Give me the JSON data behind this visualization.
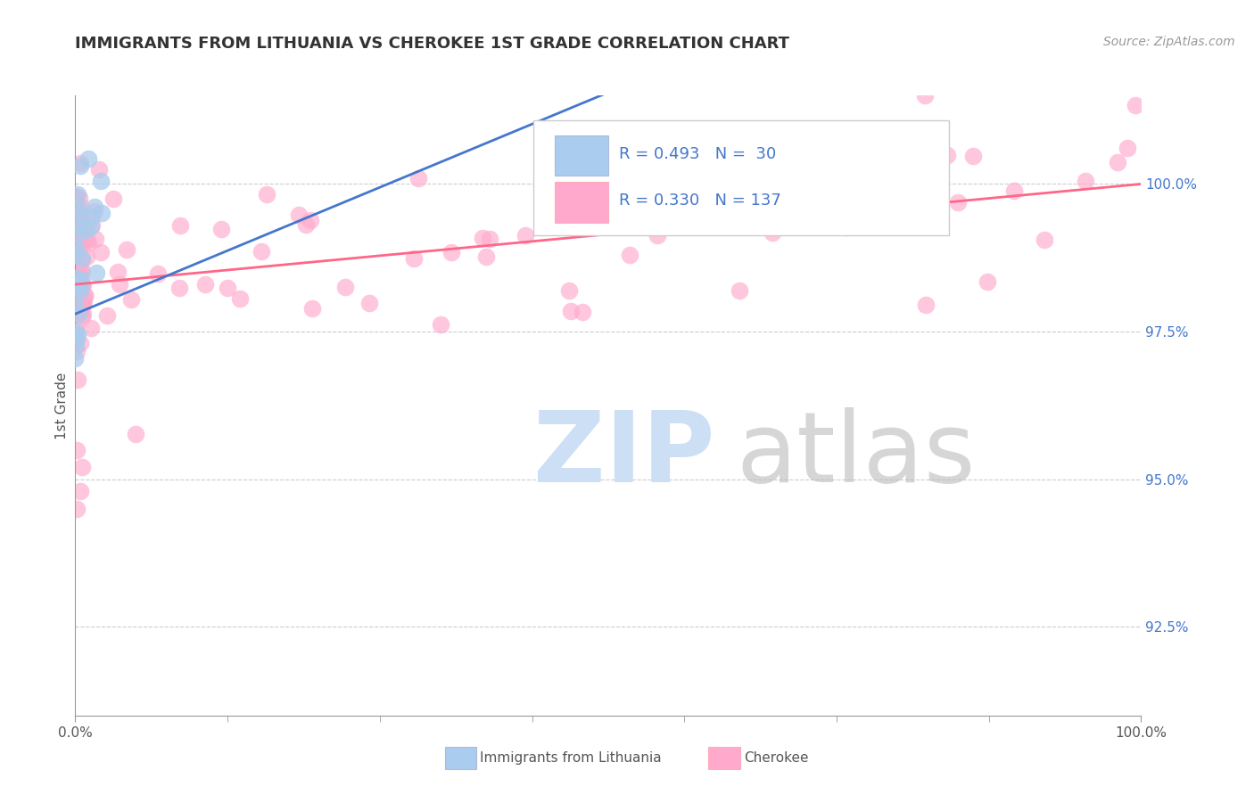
{
  "title": "IMMIGRANTS FROM LITHUANIA VS CHEROKEE 1ST GRADE CORRELATION CHART",
  "source_text": "Source: ZipAtlas.com",
  "ylabel": "1st Grade",
  "xmin": 0.0,
  "xmax": 100.0,
  "ymin": 91.0,
  "ymax": 101.5,
  "yticks": [
    92.5,
    95.0,
    97.5,
    100.0
  ],
  "yticklabels": [
    "92.5%",
    "95.0%",
    "97.5%",
    "100.0%"
  ],
  "xticklabels_pos": [
    0.0,
    100.0
  ],
  "xticklabels": [
    "0.0%",
    "100.0%"
  ],
  "blue_color": "#AACCEE",
  "pink_color": "#FFAACC",
  "blue_line_color": "#4477CC",
  "pink_line_color": "#FF6688",
  "background_color": "#FFFFFF",
  "grid_color": "#CCCCCC",
  "tick_color": "#999999",
  "title_color": "#333333",
  "source_color": "#999999",
  "ytick_color": "#4477CC",
  "legend_text_color": "#4477CC",
  "legend_r1": "R = 0.493",
  "legend_n1": "N =  30",
  "legend_r2": "R = 0.330",
  "legend_n2": "N = 137",
  "watermark_zip_color": "#CCDFF5",
  "watermark_atlas_color": "#BBBBBB",
  "bottom_legend_text_color": "#555555"
}
